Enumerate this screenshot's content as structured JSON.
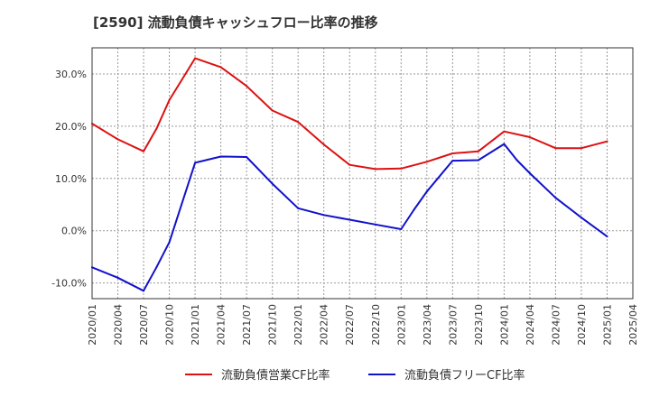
{
  "chart_data": {
    "type": "line",
    "title": "[2590]  流動負債キャッシュフロー比率の推移",
    "xlabel": "",
    "ylabel": "",
    "ylim": [
      -13,
      35
    ],
    "yticks": [
      30,
      20,
      10,
      0,
      -10
    ],
    "ytick_labels": [
      "30.0%",
      "20.0%",
      "10.0%",
      "0.0%",
      "-10.0%"
    ],
    "x_range": [
      2020.0,
      2025.25
    ],
    "xticks": [
      2020.0,
      2020.25,
      2020.5,
      2020.75,
      2021.0,
      2021.25,
      2021.5,
      2021.75,
      2022.0,
      2022.25,
      2022.5,
      2022.75,
      2023.0,
      2023.25,
      2023.5,
      2023.75,
      2024.0,
      2024.25,
      2024.5,
      2024.75,
      2025.0,
      2025.25
    ],
    "xtick_labels": [
      "2020/01",
      "2020/04",
      "2020/07",
      "2020/10",
      "2021/01",
      "2021/04",
      "2021/07",
      "2021/10",
      "2022/01",
      "2022/04",
      "2022/07",
      "2022/10",
      "2023/01",
      "2023/04",
      "2023/07",
      "2023/10",
      "2024/01",
      "2024/04",
      "2024/07",
      "2024/10",
      "2025/01",
      "2025/04"
    ],
    "grid": true,
    "legend_position": "bottom",
    "series": [
      {
        "name": "流動負債営業CF比率",
        "color": "#dd1111",
        "x": [
          2020.0,
          2020.25,
          2020.5,
          2020.625,
          2020.75,
          2021.0,
          2021.25,
          2021.5,
          2021.75,
          2022.0,
          2022.25,
          2022.5,
          2022.75,
          2023.0,
          2023.25,
          2023.5,
          2023.75,
          2024.0,
          2024.25,
          2024.5,
          2024.75,
          2025.0
        ],
        "values": [
          20.5,
          17.5,
          15.2,
          19.5,
          25.0,
          33.0,
          31.3,
          27.7,
          23.0,
          20.8,
          16.5,
          12.6,
          11.8,
          11.9,
          13.2,
          14.8,
          15.2,
          19.0,
          17.9,
          15.8,
          15.8,
          17.1
        ]
      },
      {
        "name": "流動負債フリーCF比率",
        "color": "#1111cc",
        "x": [
          2020.0,
          2020.25,
          2020.5,
          2020.625,
          2020.75,
          2021.0,
          2021.25,
          2021.5,
          2021.75,
          2022.0,
          2022.25,
          2022.5,
          2022.75,
          2023.0,
          2023.125,
          2023.25,
          2023.5,
          2023.75,
          2024.0,
          2024.125,
          2024.25,
          2024.5,
          2024.75,
          2025.0
        ],
        "values": [
          -7.0,
          -9.0,
          -11.5,
          -7.0,
          -2.2,
          13.0,
          14.2,
          14.1,
          9.0,
          4.3,
          3.0,
          2.1,
          1.2,
          0.3,
          4.0,
          7.5,
          13.4,
          13.5,
          16.6,
          13.5,
          11.0,
          6.3,
          2.5,
          -1.1
        ]
      }
    ]
  }
}
